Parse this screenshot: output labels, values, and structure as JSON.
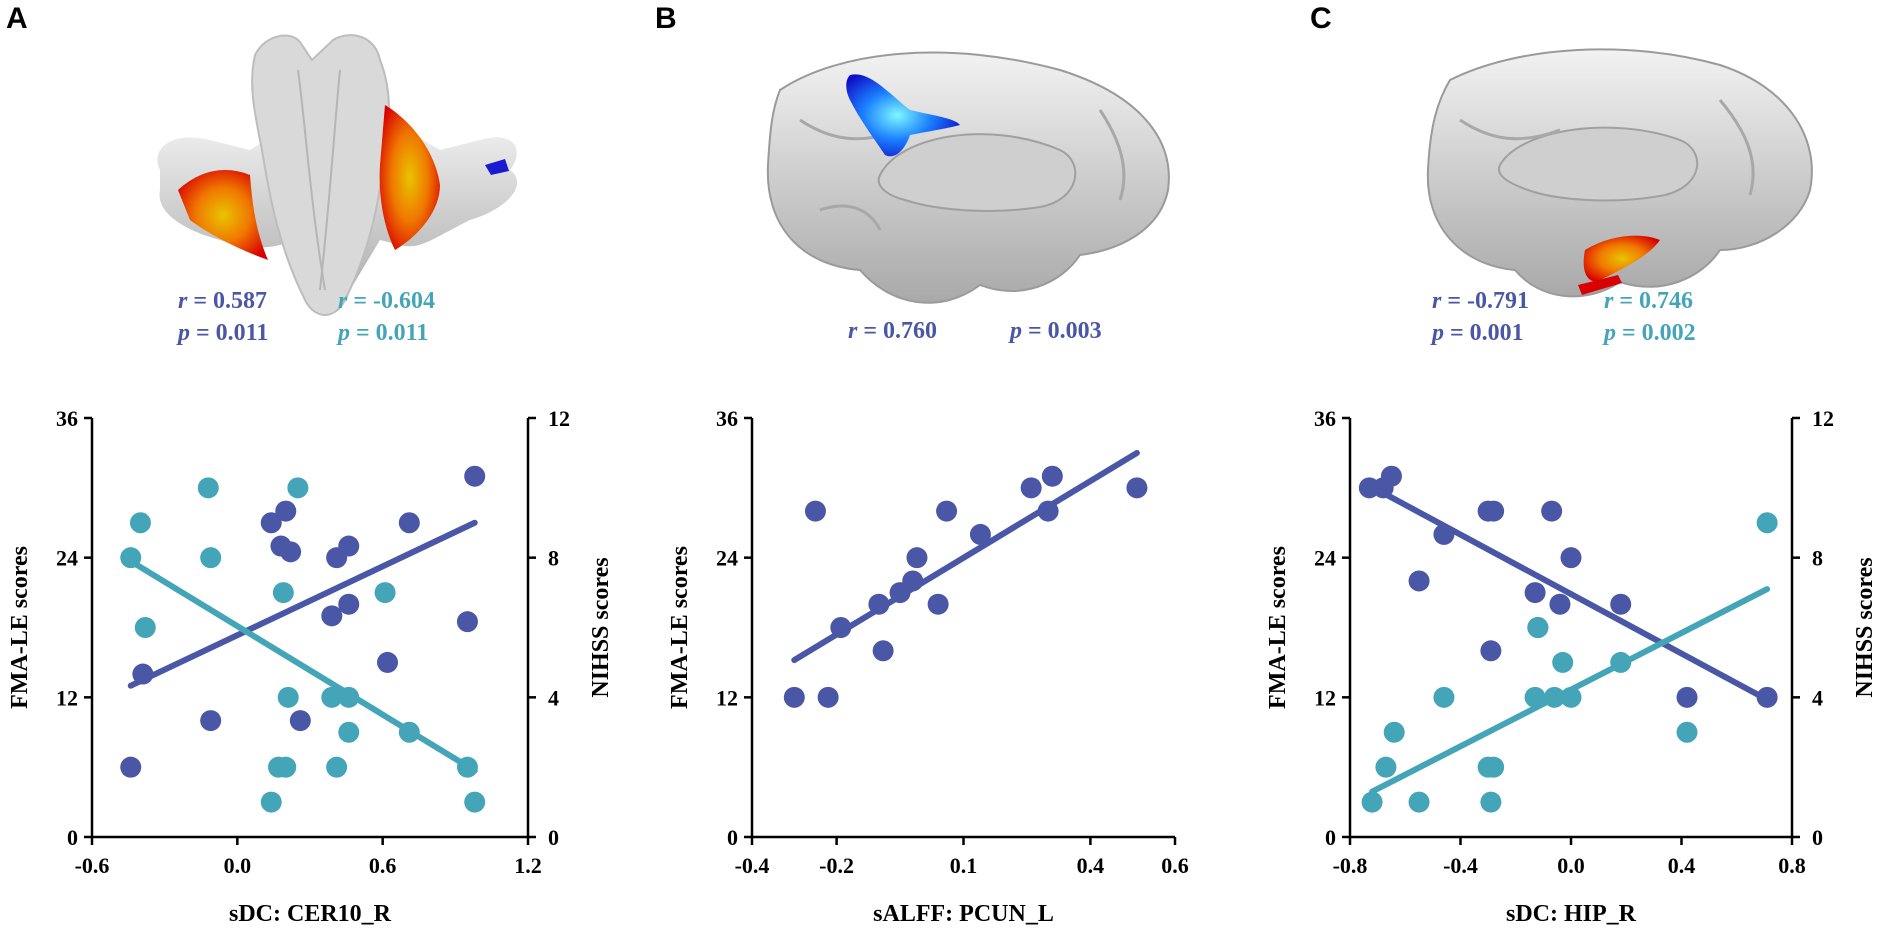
{
  "colors": {
    "dark": "#4A56A6",
    "light": "#45A5B8"
  },
  "panels": [
    {
      "letter": "A",
      "image": "cerebellum-brainstem-render-icon",
      "stats": [
        {
          "r_label": "r",
          "r_text": " = 0.587",
          "p_label": "p",
          "p_text": " = 0.011",
          "color": "#4A56A6"
        },
        {
          "r_label": "r",
          "r_text": " = -0.604",
          "p_label": "p",
          "p_text": " = 0.011",
          "color": "#45A5B8"
        }
      ]
    },
    {
      "letter": "B",
      "image": "medial-brain-render-icon",
      "stats": [
        {
          "r_label": "r",
          "r_text": " = 0.760",
          "p_label": "p",
          "p_text": " = 0.003",
          "color": "#4A56A6"
        }
      ]
    },
    {
      "letter": "C",
      "image": "medial-brain-render-icon",
      "stats": [
        {
          "r_label": "r",
          "r_text": " = -0.791",
          "p_label": "p",
          "p_text": " = 0.001",
          "color": "#4A56A6"
        },
        {
          "r_label": "r",
          "r_text": " = 0.746",
          "p_label": "p",
          "p_text": " = 0.002",
          "color": "#45A5B8"
        }
      ]
    }
  ],
  "chart_data": [
    {
      "type": "scatter",
      "panel": "A",
      "xlabel": "sDC: CER10_R",
      "ylabel": "FMA-LE scores",
      "y2label": "NIHSS scores",
      "xlim": [
        -0.6,
        1.2
      ],
      "xticks": [
        "-0.6",
        "0.0",
        "0.6",
        "1.2"
      ],
      "ylim": [
        0,
        36
      ],
      "yticks": [
        "0",
        "12",
        "24",
        "36"
      ],
      "y2lim": [
        0,
        12
      ],
      "y2ticks": [
        "0",
        "4",
        "8",
        "12"
      ],
      "series": [
        {
          "name": "FMA-LE",
          "axis": "left",
          "color": "#4A56A6",
          "x": [
            -0.44,
            -0.39,
            -0.11,
            0.14,
            0.18,
            0.2,
            0.22,
            0.26,
            0.39,
            0.41,
            0.46,
            0.46,
            0.62,
            0.71,
            0.95,
            0.98
          ],
          "y": [
            6,
            14,
            10,
            27,
            25,
            28,
            24.5,
            10,
            19,
            24,
            25,
            20,
            15,
            27,
            18.5,
            31
          ],
          "fit": [
            [
              -0.44,
              13
            ],
            [
              0.98,
              27
            ]
          ]
        },
        {
          "name": "NIHSS",
          "axis": "right",
          "color": "#45A5B8",
          "x": [
            -0.44,
            -0.4,
            -0.38,
            -0.12,
            -0.11,
            0.14,
            0.17,
            0.19,
            0.2,
            0.21,
            0.25,
            0.39,
            0.41,
            0.46,
            0.46,
            0.61,
            0.71,
            0.95,
            0.98
          ],
          "y": [
            8,
            9,
            6,
            10,
            8,
            1,
            2,
            7,
            2,
            4,
            10,
            4,
            2,
            4,
            3,
            7,
            3,
            2,
            1
          ],
          "fit": [
            [
              -0.44,
              7.9
            ],
            [
              0.98,
              1.9
            ]
          ]
        }
      ]
    },
    {
      "type": "scatter",
      "panel": "B",
      "xlabel": "sALFF: PCUN_L",
      "ylabel": "FMA-LE scores",
      "xlim": [
        -0.4,
        0.6
      ],
      "xticks": [
        "-0.4",
        "-0.2",
        "0.1",
        "0.4",
        "0.6"
      ],
      "ylim": [
        0,
        36
      ],
      "yticks": [
        "0",
        "12",
        "24",
        "36"
      ],
      "series": [
        {
          "name": "FMA-LE",
          "axis": "left",
          "color": "#4A56A6",
          "x": [
            -0.3,
            -0.25,
            -0.22,
            -0.19,
            -0.1,
            -0.09,
            -0.05,
            -0.02,
            -0.01,
            0.04,
            0.06,
            0.14,
            0.26,
            0.3,
            0.31,
            0.51
          ],
          "y": [
            12,
            28,
            12,
            18,
            20,
            16,
            21,
            22,
            24,
            20,
            28,
            26,
            30,
            28,
            31,
            30
          ],
          "fit": [
            [
              -0.3,
              15.2
            ],
            [
              0.51,
              33
            ]
          ]
        }
      ]
    },
    {
      "type": "scatter",
      "panel": "C",
      "xlabel": "sDC: HIP_R",
      "ylabel": "FMA-LE scores",
      "y2label": "NIHSS scores",
      "xlim": [
        -0.8,
        0.8
      ],
      "xticks": [
        "-0.8",
        "-0.4",
        "0.0",
        "0.4",
        "0.8"
      ],
      "ylim": [
        0,
        36
      ],
      "yticks": [
        "0",
        "12",
        "24",
        "36"
      ],
      "y2lim": [
        0,
        12
      ],
      "y2ticks": [
        "0",
        "4",
        "8",
        "12"
      ],
      "series": [
        {
          "name": "FMA-LE",
          "axis": "left",
          "color": "#4A56A6",
          "x": [
            -0.73,
            -0.68,
            -0.65,
            -0.55,
            -0.46,
            -0.3,
            -0.29,
            -0.28,
            -0.13,
            -0.12,
            -0.07,
            -0.04,
            0.0,
            0.18,
            0.42,
            0.71
          ],
          "y": [
            30,
            30,
            31,
            22,
            26,
            28,
            16,
            28,
            21,
            18,
            28,
            20,
            24,
            20,
            12,
            12
          ],
          "fit": [
            [
              -0.73,
              30.2
            ],
            [
              0.71,
              11.8
            ]
          ]
        },
        {
          "name": "NIHSS",
          "axis": "right",
          "color": "#45A5B8",
          "x": [
            -0.72,
            -0.67,
            -0.64,
            -0.55,
            -0.46,
            -0.3,
            -0.29,
            -0.28,
            -0.13,
            -0.12,
            -0.06,
            -0.03,
            0.0,
            0.18,
            0.42,
            0.71
          ],
          "y": [
            1,
            2,
            3,
            1,
            4,
            2,
            1,
            2,
            4,
            6,
            4,
            5,
            4,
            5,
            3,
            9
          ],
          "fit": [
            [
              -0.72,
              1.3
            ],
            [
              0.71,
              7.1
            ]
          ]
        }
      ]
    }
  ]
}
